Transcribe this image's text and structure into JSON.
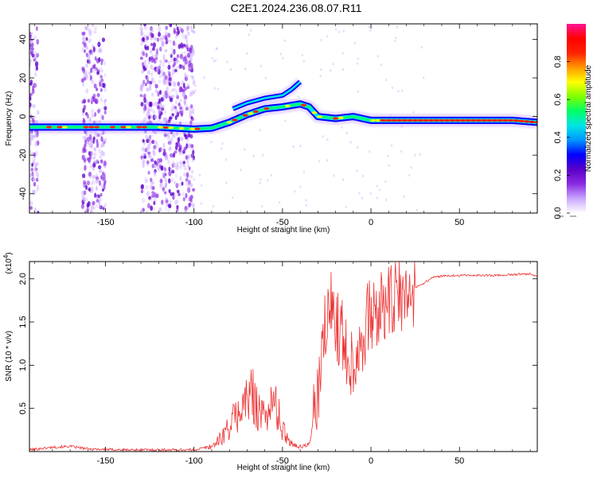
{
  "title": "C2E1.2024.236.08.07.R11",
  "colors": {
    "snr_line": "#ee3333",
    "cmap": [
      "#ffffff",
      "#c9a6ff",
      "#8a2be2",
      "#5a00c8",
      "#0000ff",
      "#0096ff",
      "#00e5e5",
      "#00ff66",
      "#7dff00",
      "#ffff00",
      "#ff9900",
      "#ff2200",
      "#ff0000",
      "#ff1493"
    ]
  },
  "chart_data": [
    {
      "id": "spectrogram",
      "type": "heatmap",
      "xlabel": "Height of straight line (km)",
      "ylabel": "Frequency (Hz)",
      "xlim": [
        -193,
        94
      ],
      "ylim": [
        -50,
        48
      ],
      "xticks": [
        -150,
        -100,
        -50,
        0,
        50
      ],
      "xtick_labels": [
        "-150",
        "-100",
        "-50",
        "0",
        "50"
      ],
      "yticks": [
        40,
        20,
        0,
        -20,
        -40
      ],
      "ytick_labels": [
        "40",
        "20",
        "0",
        "-20",
        "-40"
      ],
      "ridge": {
        "x": [
          -193,
          -150,
          -120,
          -100,
          -90,
          -80,
          -70,
          -60,
          -50,
          -40,
          -35,
          -30,
          -20,
          -10,
          0,
          20,
          50,
          80,
          94
        ],
        "y": [
          -5.5,
          -5.5,
          -5.5,
          -6.5,
          -6,
          -3,
          1,
          4,
          5,
          6.5,
          5,
          0,
          -1,
          0,
          -2,
          -2,
          -2,
          -2,
          -3
        ]
      },
      "ridge_upper": {
        "x": [
          -78,
          -70,
          -60,
          -50,
          -45,
          -40
        ],
        "y": [
          4,
          7,
          9.5,
          11,
          14,
          18
        ]
      },
      "noise_bands": [
        [
          -193,
          -188
        ],
        [
          -163,
          -150
        ],
        [
          -130,
          -100
        ]
      ],
      "colorbar": {
        "label": "Normalized spectral amplitude",
        "range": [
          0,
          1
        ],
        "ticks": [
          0.0,
          0.2,
          0.4,
          0.6,
          0.8
        ],
        "tick_labels": [
          "0.0",
          "0.2",
          "0.4",
          "0.6",
          "0.8"
        ]
      }
    },
    {
      "id": "snr",
      "type": "line",
      "xlabel": "Height of straight line (km)",
      "ylabel": "SNR (10 * v/v)",
      "y_multiplier_label": "(x10",
      "y_multiplier_exp": "4",
      "xlim": [
        -193,
        94
      ],
      "ylim": [
        0,
        2.2
      ],
      "xticks": [
        -150,
        -100,
        -50,
        0,
        50
      ],
      "xtick_labels": [
        "-150",
        "-100",
        "-50",
        "0",
        "50"
      ],
      "yticks": [
        0.5,
        1.0,
        1.5,
        2.0
      ],
      "ytick_labels": [
        "0.5",
        "1.0",
        "1.5",
        "2.0"
      ],
      "series": [
        {
          "name": "SNR",
          "x": [
            -193,
            -180,
            -170,
            -160,
            -140,
            -120,
            -100,
            -90,
            -85,
            -80,
            -75,
            -70,
            -66,
            -62,
            -58,
            -54,
            -50,
            -45,
            -40,
            -35,
            -30,
            -26,
            -22,
            -18,
            -14,
            -10,
            -6,
            -2,
            0,
            4,
            8,
            12,
            16,
            20,
            25,
            30,
            35,
            40,
            50,
            60,
            70,
            80,
            90,
            94
          ],
          "y": [
            0.02,
            0.05,
            0.06,
            0.03,
            0.02,
            0.02,
            0.02,
            0.06,
            0.15,
            0.3,
            0.45,
            0.6,
            0.65,
            0.4,
            0.5,
            0.55,
            0.25,
            0.1,
            0.05,
            0.08,
            0.6,
            1.4,
            1.7,
            1.4,
            1.2,
            1.0,
            1.3,
            1.5,
            1.6,
            1.55,
            1.75,
            1.7,
            1.8,
            1.75,
            1.9,
            1.95,
            2.02,
            2.03,
            2.04,
            2.04,
            2.04,
            2.05,
            2.06,
            2.03
          ]
        }
      ]
    }
  ]
}
